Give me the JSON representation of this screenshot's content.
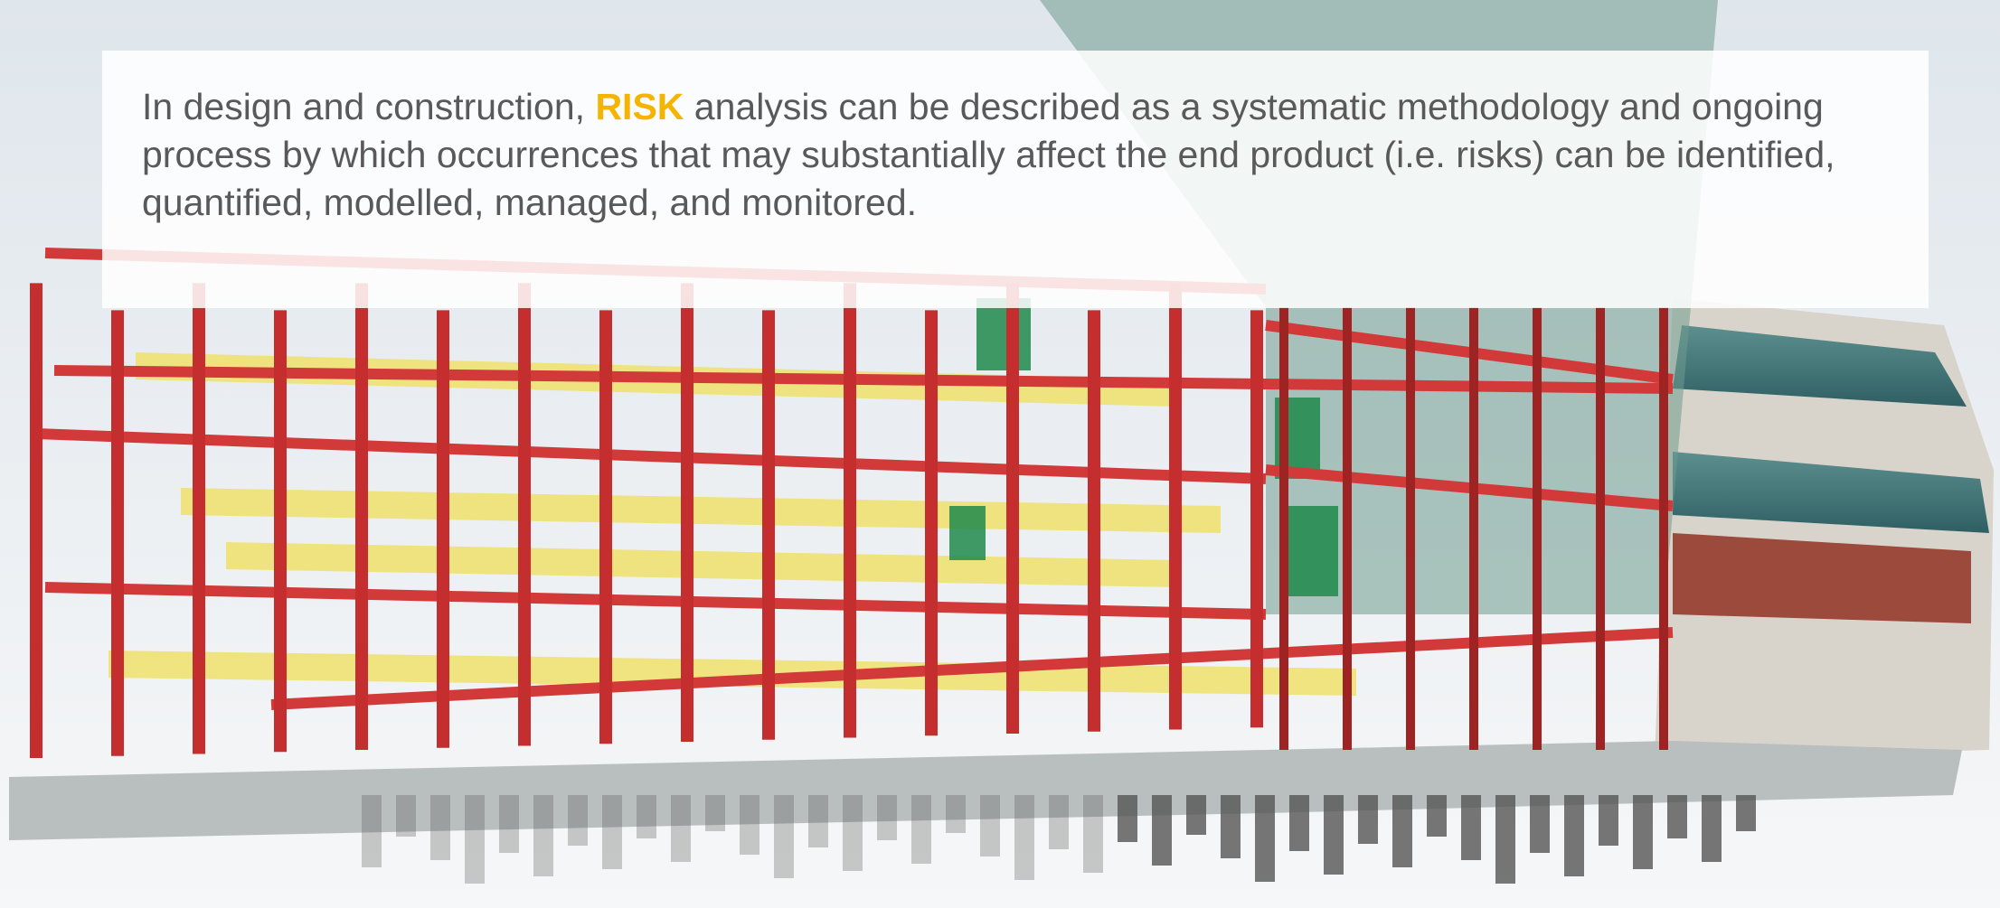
{
  "text": {
    "before": "In design and construction, ",
    "highlight": "RISK",
    "after": " analysis can be described as a systematic methodology and ongoing process by which occurrences that may substantially affect the end product (i.e. risks) can be identified, quantified, modelled, managed, and monitored."
  }
}
